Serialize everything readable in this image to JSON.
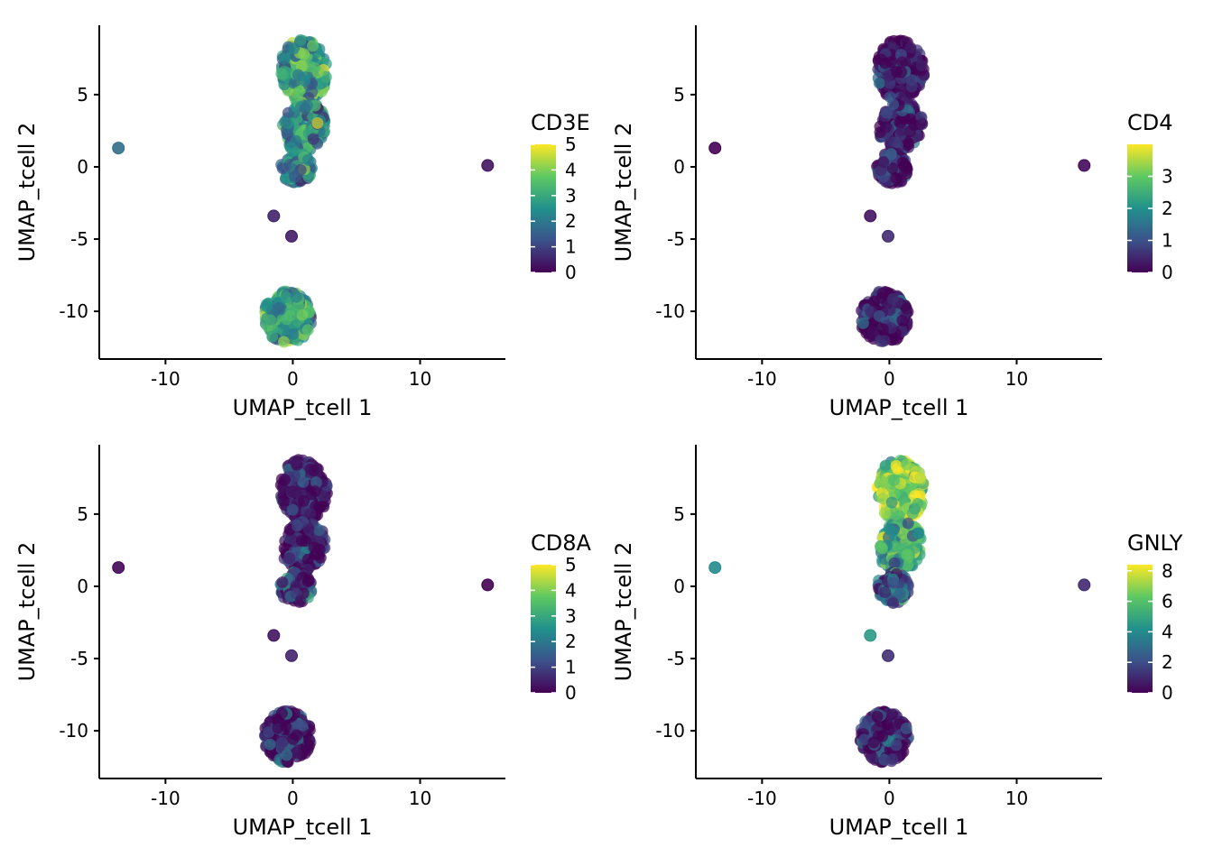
{
  "chart_data": [
    {
      "type": "scatter",
      "feature": "CD3E",
      "xlabel": "UMAP_tcell 1",
      "ylabel": "UMAP_tcell 2",
      "xlim": [
        -15.2,
        16.7
      ],
      "ylim": [
        -13.3,
        9.8
      ],
      "xticks": [
        -10,
        0,
        10
      ],
      "yticks": [
        5,
        0,
        -5,
        -10
      ],
      "legend": {
        "title": "CD3E",
        "min": 0,
        "max": 5,
        "ticks": [
          0,
          1,
          2,
          3,
          4,
          5
        ]
      },
      "expression": {
        "top": 2.8,
        "mid": 2.5,
        "low": 2.2,
        "bottom": 2.7,
        "isolated": [
          1.8,
          0.3,
          0.5,
          0.4
        ]
      }
    },
    {
      "type": "scatter",
      "feature": "CD4",
      "xlabel": "UMAP_tcell 1",
      "ylabel": "UMAP_tcell 2",
      "xlim": [
        -15.2,
        16.7
      ],
      "ylim": [
        -13.3,
        9.8
      ],
      "xticks": [
        -10,
        0,
        10
      ],
      "yticks": [
        5,
        0,
        -5,
        -10
      ],
      "legend": {
        "title": "CD4",
        "min": 0,
        "max": 4,
        "ticks": [
          0,
          1,
          2,
          3
        ]
      },
      "expression": {
        "top": 0.1,
        "mid": 0.2,
        "low": 0.3,
        "bottom": 0.3,
        "isolated": [
          0.0,
          0.1,
          0.2,
          0.5
        ]
      }
    },
    {
      "type": "scatter",
      "feature": "CD8A",
      "xlabel": "UMAP_tcell 1",
      "ylabel": "UMAP_tcell 2",
      "xlim": [
        -15.2,
        16.7
      ],
      "ylim": [
        -13.3,
        9.8
      ],
      "xticks": [
        -10,
        0,
        10
      ],
      "yticks": [
        5,
        0,
        -5,
        -10
      ],
      "legend": {
        "title": "CD8A",
        "min": 0,
        "max": 5,
        "ticks": [
          0,
          1,
          2,
          3,
          4,
          5
        ]
      },
      "expression": {
        "top": 0.2,
        "mid": 0.4,
        "low": 0.8,
        "bottom": 0.6,
        "isolated": [
          0.1,
          0.0,
          0.3,
          0.5
        ]
      }
    },
    {
      "type": "scatter",
      "feature": "GNLY",
      "xlabel": "UMAP_tcell 1",
      "ylabel": "UMAP_tcell 2",
      "xlim": [
        -15.2,
        16.7
      ],
      "ylim": [
        -13.3,
        9.8
      ],
      "xticks": [
        -10,
        0,
        10
      ],
      "yticks": [
        5,
        0,
        -5,
        -10
      ],
      "legend": {
        "title": "GNLY",
        "min": 0,
        "max": 8.4,
        "ticks": [
          0,
          2,
          4,
          6,
          8
        ]
      },
      "expression": {
        "top": 6.5,
        "mid": 5.0,
        "low": 2.2,
        "bottom": 0.5,
        "isolated": [
          4.0,
          1.0,
          4.5,
          1.2
        ]
      }
    }
  ],
  "shared": {
    "clusters": [
      {
        "name": "top",
        "x": [
          -1.3,
          2.4
        ],
        "y": [
          4.5,
          8.8
        ]
      },
      {
        "name": "mid",
        "x": [
          -1.0,
          2.4
        ],
        "y": [
          1.0,
          4.5
        ]
      },
      {
        "name": "low",
        "x": [
          -1.0,
          1.5
        ],
        "y": [
          -1.2,
          1.0
        ]
      },
      {
        "name": "bottom",
        "x": [
          -2.3,
          1.5
        ],
        "y": [
          -12.2,
          -8.6
        ]
      }
    ],
    "isolated_points": [
      {
        "x": -13.7,
        "y": 1.3
      },
      {
        "x": 15.3,
        "y": 0.1
      },
      {
        "x": -1.5,
        "y": -3.4
      },
      {
        "x": -0.1,
        "y": -4.8
      }
    ]
  }
}
